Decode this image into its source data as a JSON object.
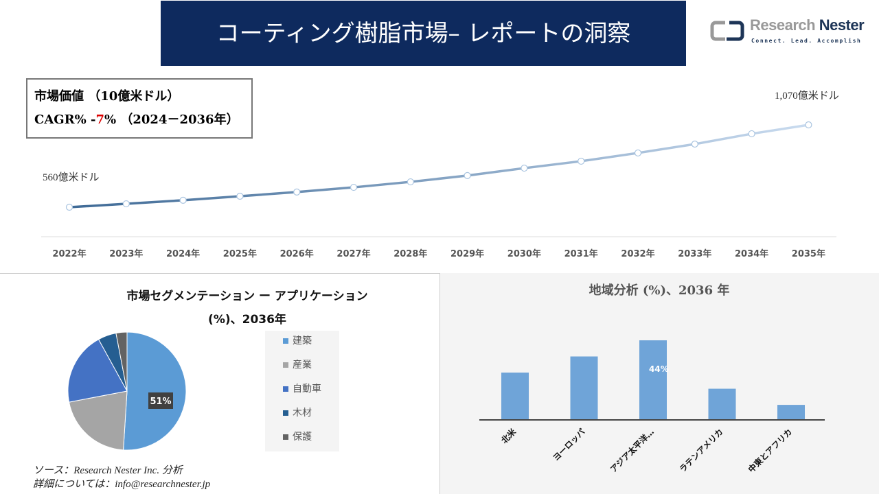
{
  "header": {
    "title": "コーティング樹脂市場– レポートの洞察"
  },
  "logo": {
    "name_part1": "Research",
    "name_part2": "Nester",
    "tagline": "Connect. Lead. Accomplish"
  },
  "info_box": {
    "line1": "市場価値 （10億米ドル）",
    "cagr_prefix": "CAGR% -",
    "cagr_value": "7",
    "cagr_suffix": "% （2024－2036年）"
  },
  "colors": {
    "title_bg": "#0e2a5e",
    "line_start": "#3f6a96",
    "line_end": "#c9dbef",
    "bar": "#6fa4d8",
    "cagr_value": "#dd0000"
  },
  "chart_data": [
    {
      "type": "line",
      "title": "",
      "ylabel": "市場価値 （10億米ドル）",
      "x": [
        "2022年",
        "2023年",
        "2024年",
        "2025年",
        "2026年",
        "2027年",
        "2028年",
        "2029年",
        "2030年",
        "2031年",
        "2032年",
        "2033年",
        "2034年",
        "2035年"
      ],
      "values": [
        56,
        58.1,
        60.3,
        62.8,
        65.4,
        68.3,
        71.7,
        75.6,
        80.2,
        84.5,
        89.6,
        95.1,
        101.5,
        107
      ],
      "annotations": {
        "start": "560億米ドル",
        "end": "1,070億米ドル"
      },
      "grid": false
    },
    {
      "type": "pie",
      "title_line1": "市場セグメンテーション ー アプリケーション",
      "title_line2": "(%)、2036年",
      "categories": [
        "建築",
        "産業",
        "自動車",
        "木材",
        "保護"
      ],
      "values": [
        51,
        21,
        20,
        5,
        3
      ],
      "colors": [
        "#5b9bd5",
        "#a5a5a5",
        "#4472c4",
        "#255e91",
        "#636363"
      ],
      "data_label": "51%",
      "legend": "right"
    },
    {
      "type": "bar",
      "title": "地域分析 (%)、2036 年",
      "categories": [
        "北米",
        "ヨーロッパ",
        "アジア太平洋…",
        "ラテンアメリカ",
        "中東とアフリカ"
      ],
      "values": [
        26,
        35,
        44,
        17,
        8
      ],
      "data_label": "44%"
    }
  ],
  "footer": {
    "source": "ソース：Research Nester Inc. 分析",
    "contact": "詳細については：info@researchnester.jp"
  }
}
